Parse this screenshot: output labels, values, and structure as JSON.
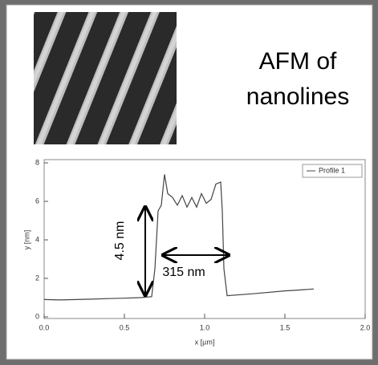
{
  "caption": [
    "AFM of",
    "nanolines"
  ],
  "chart_data": {
    "type": "line",
    "x_label": "x [µm]",
    "y_label": "y [nm]",
    "x": [
      0,
      0.1,
      0.2,
      0.3,
      0.4,
      0.5,
      0.6,
      0.67,
      0.69,
      0.71,
      0.73,
      0.75,
      0.77,
      0.8,
      0.83,
      0.86,
      0.89,
      0.92,
      0.95,
      0.98,
      1.01,
      1.04,
      1.07,
      1.1,
      1.11,
      1.12,
      1.14,
      1.3,
      1.5,
      1.6,
      1.68
    ],
    "series": [
      {
        "name": "Profile 1",
        "color": "#444444",
        "values": [
          0.9,
          0.88,
          0.9,
          0.92,
          0.95,
          0.97,
          1.0,
          1.05,
          2.5,
          5.5,
          5.8,
          7.4,
          6.4,
          6.2,
          5.8,
          6.3,
          5.7,
          6.2,
          5.7,
          6.4,
          5.9,
          6.1,
          6.9,
          7.0,
          5.5,
          2.5,
          1.1,
          1.2,
          1.35,
          1.4,
          1.45
        ]
      }
    ],
    "xlim": [
      0,
      2
    ],
    "ylim": [
      0,
      8
    ],
    "xticks": [
      {
        "value": 0,
        "label": "0.0"
      },
      {
        "value": 0.5,
        "label": "0.5"
      },
      {
        "value": 1,
        "label": "1.0"
      },
      {
        "value": 1.5,
        "label": "1.5"
      },
      {
        "value": 2,
        "label": "2.0"
      }
    ],
    "yticks": [
      0,
      2,
      4,
      6,
      8
    ],
    "legend": "top-right",
    "annotations": [
      "4.5 nm",
      "315 nm"
    ]
  }
}
